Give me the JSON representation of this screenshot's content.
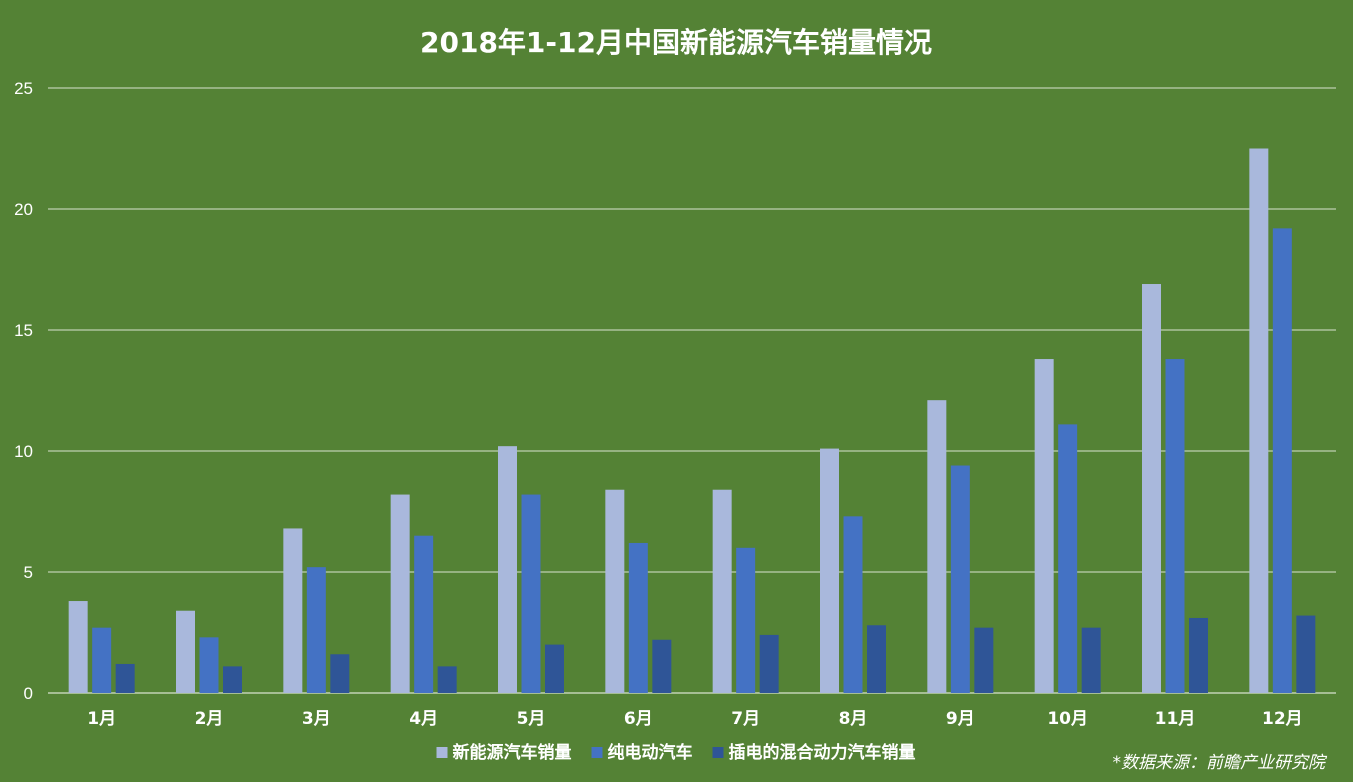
{
  "chart_data": {
    "type": "bar",
    "title": "2018年1-12月中国新能源汽车销量情况",
    "xlabel": "",
    "ylabel": "",
    "ylim": [
      0,
      25
    ],
    "yticks": [
      0,
      5,
      10,
      15,
      20,
      25
    ],
    "grid": true,
    "legend_position": "bottom",
    "categories": [
      "1月",
      "2月",
      "3月",
      "4月",
      "5月",
      "6月",
      "7月",
      "8月",
      "9月",
      "10月",
      "11月",
      "12月"
    ],
    "series": [
      {
        "name": "新能源汽车销量",
        "color": "#a9b8dc",
        "values": [
          3.8,
          3.4,
          6.8,
          8.2,
          10.2,
          8.4,
          8.4,
          10.1,
          12.1,
          13.8,
          16.9,
          22.5
        ]
      },
      {
        "name": "纯电动汽车",
        "color": "#4472c4",
        "values": [
          2.7,
          2.3,
          5.2,
          6.5,
          8.2,
          6.2,
          6.0,
          7.3,
          9.4,
          11.1,
          13.8,
          19.2
        ]
      },
      {
        "name": "插电的混合动力汽车销量",
        "color": "#2f5597",
        "values": [
          1.2,
          1.1,
          1.6,
          1.1,
          2.0,
          2.2,
          2.4,
          2.8,
          2.7,
          2.7,
          3.1,
          3.2
        ]
      }
    ]
  },
  "source_note": "*数据来源：前瞻产业研究院",
  "colors": {
    "background": "#548235",
    "text": "#ffffff",
    "grid": "#d8e3cf"
  }
}
